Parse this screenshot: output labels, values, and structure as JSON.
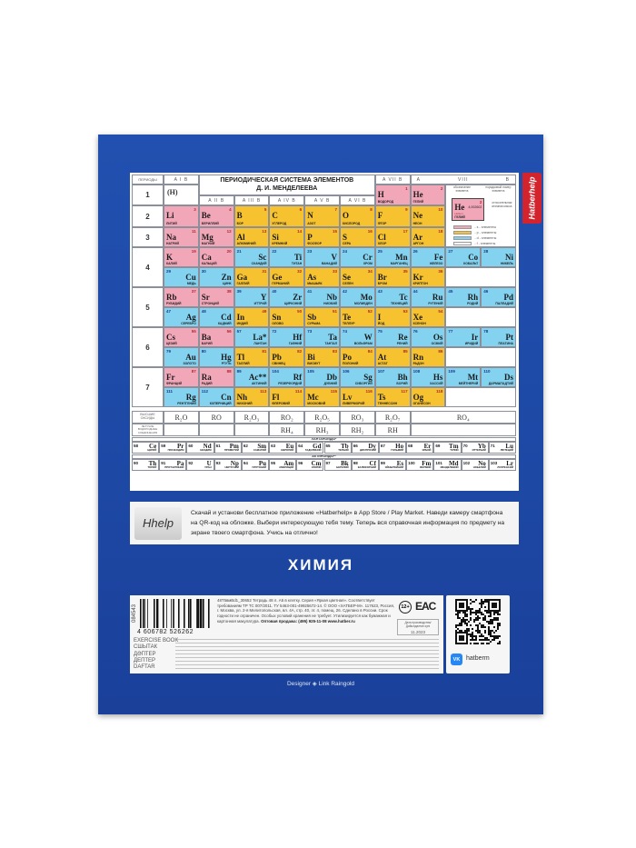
{
  "brand_tab": "Hatberhelp",
  "table": {
    "title_line1": "ПЕРИОДИЧЕСКАЯ СИСТЕМА ЭЛЕМЕНТОВ",
    "title_line2": "Д. И. МЕНДЕЛЕЕВА",
    "periods_header": "ПЕРИОДЫ",
    "group_headers": [
      "A I B",
      "A II B",
      "A III B",
      "A IV B",
      "A V B",
      "A VI B",
      "A VII B"
    ],
    "group_viii": {
      "a": "A",
      "label": "VIII",
      "b": "B"
    },
    "hydrogen_note": "(H)",
    "periods": [
      "1",
      "2",
      "3",
      "4",
      "5",
      "6",
      "7"
    ],
    "rows": [
      [
        [
          "1",
          "H",
          "ВОДОРОД",
          "s",
          6
        ],
        [
          "2",
          "He",
          "ГЕЛИЙ",
          "s",
          7
        ]
      ],
      [
        [
          "3",
          "Li",
          "ЛИТИЙ",
          "s"
        ],
        [
          "4",
          "Be",
          "БЕРИЛЛИЙ",
          "s"
        ],
        [
          "5",
          "B",
          "БОР",
          "p"
        ],
        [
          "6",
          "C",
          "УГЛЕРОД",
          "p"
        ],
        [
          "7",
          "N",
          "АЗОТ",
          "p"
        ],
        [
          "8",
          "O",
          "КИСЛОРОД",
          "p"
        ],
        [
          "9",
          "F",
          "ФТОР",
          "p"
        ],
        [
          "10",
          "Ne",
          "НЕОН",
          "p"
        ]
      ],
      [
        [
          "11",
          "Na",
          "НАТРИЙ",
          "s"
        ],
        [
          "12",
          "Mg",
          "МАГНИЙ",
          "s"
        ],
        [
          "13",
          "Al",
          "АЛЮМИНИЙ",
          "p"
        ],
        [
          "14",
          "Si",
          "КРЕМНИЙ",
          "p"
        ],
        [
          "15",
          "P",
          "ФОСФОР",
          "p"
        ],
        [
          "16",
          "S",
          "СЕРА",
          "p"
        ],
        [
          "17",
          "Cl",
          "ХЛОР",
          "p"
        ],
        [
          "18",
          "Ar",
          "АРГОН",
          "p"
        ]
      ],
      [
        [
          "19",
          "K",
          "КАЛИЙ",
          "s"
        ],
        [
          "20",
          "Ca",
          "КАЛЬЦИЙ",
          "s"
        ],
        [
          "21",
          "Sc",
          "СКАНДИЙ",
          "d"
        ],
        [
          "22",
          "Ti",
          "ТИТАН",
          "d"
        ],
        [
          "23",
          "V",
          "ВАНАДИЙ",
          "d"
        ],
        [
          "24",
          "Cr",
          "ХРОМ",
          "d"
        ],
        [
          "25",
          "Mn",
          "МАРГАНЕЦ",
          "d"
        ],
        [
          "26",
          "Fe",
          "ЖЕЛЕЗО",
          "d"
        ],
        [
          "27",
          "Co",
          "КОБАЛЬТ",
          "d"
        ],
        [
          "28",
          "Ni",
          "НИКЕЛЬ",
          "d"
        ]
      ],
      [
        [
          "29",
          "Cu",
          "МЕДЬ",
          "d"
        ],
        [
          "30",
          "Zn",
          "ЦИНК",
          "d"
        ],
        [
          "31",
          "Ga",
          "ГАЛЛИЙ",
          "p"
        ],
        [
          "32",
          "Ge",
          "ГЕРМАНИЙ",
          "p"
        ],
        [
          "33",
          "As",
          "МЫШЬЯК",
          "p"
        ],
        [
          "34",
          "Se",
          "СЕЛЕН",
          "p"
        ],
        [
          "35",
          "Br",
          "БРОМ",
          "p"
        ],
        [
          "36",
          "Kr",
          "КРИПТОН",
          "p"
        ]
      ],
      [
        [
          "37",
          "Rb",
          "РУБИДИЙ",
          "s"
        ],
        [
          "38",
          "Sr",
          "СТРОНЦИЙ",
          "s"
        ],
        [
          "39",
          "Y",
          "ИТТРИЙ",
          "d"
        ],
        [
          "40",
          "Zr",
          "ЦИРКОНИЙ",
          "d"
        ],
        [
          "41",
          "Nb",
          "НИОБИЙ",
          "d"
        ],
        [
          "42",
          "Mo",
          "МОЛИБДЕН",
          "d"
        ],
        [
          "43",
          "Tc",
          "ТЕХНЕЦИЙ",
          "d"
        ],
        [
          "44",
          "Ru",
          "РУТЕНИЙ",
          "d"
        ],
        [
          "45",
          "Rh",
          "РОДИЙ",
          "d"
        ],
        [
          "46",
          "Pd",
          "ПАЛЛАДИЙ",
          "d"
        ]
      ],
      [
        [
          "47",
          "Ag",
          "СЕРЕБРО",
          "d"
        ],
        [
          "48",
          "Cd",
          "КАДМИЙ",
          "d"
        ],
        [
          "49",
          "In",
          "ИНДИЙ",
          "p"
        ],
        [
          "50",
          "Sn",
          "ОЛОВО",
          "p"
        ],
        [
          "51",
          "Sb",
          "СУРЬМА",
          "p"
        ],
        [
          "52",
          "Te",
          "ТЕЛЛУР",
          "p"
        ],
        [
          "53",
          "I",
          "ЙОД",
          "p"
        ],
        [
          "54",
          "Xe",
          "КСЕНОН",
          "p"
        ]
      ],
      [
        [
          "55",
          "Cs",
          "ЦЕЗИЙ",
          "s"
        ],
        [
          "56",
          "Ba",
          "БАРИЙ",
          "s"
        ],
        [
          "57",
          "La*",
          "ЛАНТАН",
          "d"
        ],
        [
          "72",
          "Hf",
          "ГАФНИЙ",
          "d"
        ],
        [
          "73",
          "Ta",
          "ТАНТАЛ",
          "d"
        ],
        [
          "74",
          "W",
          "ВОЛЬФРАМ",
          "d"
        ],
        [
          "75",
          "Re",
          "РЕНИЙ",
          "d"
        ],
        [
          "76",
          "Os",
          "ОСМИЙ",
          "d"
        ],
        [
          "77",
          "Ir",
          "ИРИДИЙ",
          "d"
        ],
        [
          "78",
          "Pt",
          "ПЛАТИНА",
          "d"
        ]
      ],
      [
        [
          "79",
          "Au",
          "ЗОЛОТО",
          "d"
        ],
        [
          "80",
          "Hg",
          "РТУТЬ",
          "d"
        ],
        [
          "81",
          "Tl",
          "ТАЛЛИЙ",
          "p"
        ],
        [
          "82",
          "Pb",
          "СВИНЕЦ",
          "p"
        ],
        [
          "83",
          "Bi",
          "ВИСМУТ",
          "p"
        ],
        [
          "84",
          "Po",
          "ПОЛОНИЙ",
          "p"
        ],
        [
          "85",
          "At",
          "АСТАТ",
          "p"
        ],
        [
          "86",
          "Rn",
          "РАДОН",
          "p"
        ]
      ],
      [
        [
          "87",
          "Fr",
          "ФРАНЦИЙ",
          "s"
        ],
        [
          "88",
          "Ra",
          "РАДИЙ",
          "s"
        ],
        [
          "89",
          "Ac**",
          "АКТИНИЙ",
          "d"
        ],
        [
          "104",
          "Rf",
          "РЕЗЕРФОРДИЙ",
          "d"
        ],
        [
          "105",
          "Db",
          "ДУБНИЙ",
          "d"
        ],
        [
          "106",
          "Sg",
          "СИБОРГИЙ",
          "d"
        ],
        [
          "107",
          "Bh",
          "БОРИЙ",
          "d"
        ],
        [
          "108",
          "Hs",
          "ХАССИЙ",
          "d"
        ],
        [
          "109",
          "Mt",
          "МЕЙТНЕРИЙ",
          "d"
        ],
        [
          "110",
          "Ds",
          "ДАРМШТАДТИЙ",
          "d"
        ]
      ],
      [
        [
          "111",
          "Rg",
          "РЕНТГЕНИЙ",
          "d"
        ],
        [
          "112",
          "Cn",
          "КОПЕРНИЦИЙ",
          "d"
        ],
        [
          "113",
          "Nh",
          "НИХОНИЙ",
          "p"
        ],
        [
          "114",
          "Fl",
          "ФЛЕРОВИЙ",
          "p"
        ],
        [
          "115",
          "Mc",
          "МОСКОВИЙ",
          "p"
        ],
        [
          "116",
          "Lv",
          "ЛИВЕРМОРИЙ",
          "p"
        ],
        [
          "117",
          "Ts",
          "ТЕННЕССИН",
          "p"
        ],
        [
          "118",
          "Og",
          "ОГАНЕСОН",
          "p"
        ]
      ]
    ],
    "oxides_label": "ВЫСШИЕ ОКСИДЫ",
    "oxides": [
      "R₂O",
      "RO",
      "R₂O₃",
      "RO₂",
      "R₂O₅",
      "RO₃",
      "R₂O₇",
      "RO₄"
    ],
    "hydrides_label": "ЛЕТУЧИЕ ВОДОРОДНЫЕ СОЕДИНЕНИЯ",
    "hydrides": [
      "RH₄",
      "RH₃",
      "RH₂",
      "RH"
    ],
    "lanthanides_label": "ЛАНТАНОИДЫ*",
    "lanthanides": [
      [
        "58",
        "Ce",
        "ЦЕРИЙ"
      ],
      [
        "59",
        "Pr",
        "ПРАЗЕОДИМ"
      ],
      [
        "60",
        "Nd",
        "НЕОДИМ"
      ],
      [
        "61",
        "Pm",
        "ПРОМЕТИЙ"
      ],
      [
        "62",
        "Sm",
        "САМАРИЙ"
      ],
      [
        "63",
        "Eu",
        "ЕВРОПИЙ"
      ],
      [
        "64",
        "Gd",
        "ГАДОЛИНИЙ"
      ],
      [
        "65",
        "Tb",
        "ТЕРБИЙ"
      ],
      [
        "66",
        "Dy",
        "ДИСПРОЗИЙ"
      ],
      [
        "67",
        "Ho",
        "ГОЛЬМИЙ"
      ],
      [
        "68",
        "Er",
        "ЭРБИЙ"
      ],
      [
        "69",
        "Tm",
        "ТУЛИЙ"
      ],
      [
        "70",
        "Yb",
        "ИТТЕРБИЙ"
      ],
      [
        "71",
        "Lu",
        "ЛЮТЕЦИЙ"
      ]
    ],
    "actinides_label": "АКТИНОИДЫ**",
    "actinides": [
      [
        "90",
        "Th",
        "ТОРИЙ"
      ],
      [
        "91",
        "Pa",
        "ПРОТАКТИНИЙ"
      ],
      [
        "92",
        "U",
        "УРАН"
      ],
      [
        "93",
        "Np",
        "НЕПТУНИЙ"
      ],
      [
        "94",
        "Pu",
        "ПЛУТОНИЙ"
      ],
      [
        "95",
        "Am",
        "АМЕРИЦИЙ"
      ],
      [
        "96",
        "Cm",
        "КЮРИЙ"
      ],
      [
        "97",
        "Bk",
        "БЕРКЛИЙ"
      ],
      [
        "98",
        "Cf",
        "КАЛИФОРНИЙ"
      ],
      [
        "99",
        "Es",
        "ЭЙНШТЕЙНИЙ"
      ],
      [
        "100",
        "Fm",
        "ФЕРМИЙ"
      ],
      [
        "101",
        "Md",
        "МЕНДЕЛЕВИЙ"
      ],
      [
        "102",
        "No",
        "НОБЕЛИЙ"
      ],
      [
        "103",
        "Lr",
        "ЛОУРЕНСИЙ"
      ]
    ],
    "legend": {
      "symbol_caption": "обозначение элемента",
      "number_caption": "порядковый номер элемента",
      "mass_caption": "относительная атомная масса",
      "example": {
        "number": "2",
        "symbol": "He",
        "latin": "Helium",
        "name": "ГЕЛИЙ",
        "mass": "4,002602"
      },
      "items": [
        "- s - элементы",
        "- p - элементы",
        "- d - элементы",
        "- f - элементы"
      ]
    }
  },
  "colors": {
    "s": "#f2a7b9",
    "p": "#f6c22f",
    "d": "#82d2f0",
    "f": "#ffffff",
    "cover": "#1f4aa8",
    "brand_red": "#d3242e"
  },
  "app_promo": {
    "logo": "Hhelp",
    "text": "Скачай и установи бесплатное приложение «Hatberhelp» в App Store / Play Market. Наведи камеру смартфона на QR-код на обложке. Выбери интересующую тебя тему. Теперь вся справочная информация по предмету на экране твоего смартфона. Учись на отлично!"
  },
  "subject": "ХИМИЯ",
  "info": {
    "barcode_number": "4 606782 526262",
    "batch": "084543",
    "product_text": "48Т5вмВd1_30652 Тетрадь 48 л. А5 в клетку. Серия «Яркая цветная». Соответствует требованиям ТР ТС 007/2011. ТУ 5463-001-49925672-14. © ООО «ХАТБЕР-М». 117623, Россия, г. Москва, ул. 2-я Мелитопольская, вл. 4А, стр. 40, эт. 4, помещ. 26. Сделано в России. Срок годности не ограничен. Особых условий хранения не требует. Утилизируется как бумажная и картонная макулатура.",
    "wholesale": "Оптовая продажа: (495) 925-11-08 www.hatber.ru",
    "age": "12+",
    "eac": "EAC",
    "date_label": "Дата производства/ Дайындалған күні",
    "date": "11.2023",
    "languages": [
      "EXERCISE BOOK",
      "СШЫТАК",
      "ДӘПТЕР",
      "ДЕПТЕР",
      "DAFTAR"
    ]
  },
  "social": {
    "network": "VK",
    "handle": "hatberm"
  },
  "designer": "Designer ◈ Link Raingold"
}
